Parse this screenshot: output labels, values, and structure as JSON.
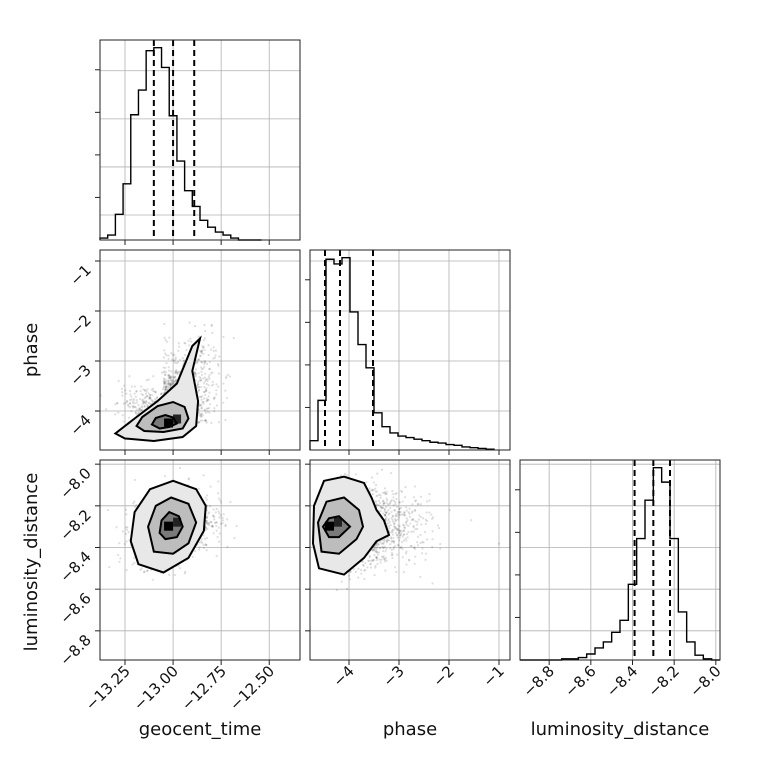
{
  "chart_data": {
    "type": "corner",
    "parameters": [
      {
        "name": "geocent_time",
        "label": "geocent_time",
        "range": [
          -13.38,
          -12.34
        ],
        "ticks": [
          -13.25,
          -13.0,
          -12.75,
          -12.5
        ],
        "tick_labels": [
          "−13.25",
          "−13.00",
          "−12.75",
          "−12.50"
        ],
        "quantiles": [
          -13.1,
          -13.0,
          -12.89
        ]
      },
      {
        "name": "phase",
        "label": "phase",
        "range": [
          -4.78,
          -0.78
        ],
        "ticks": [
          -4,
          -3,
          -2,
          -1
        ],
        "tick_labels": [
          "−4",
          "−3",
          "−2",
          "−1"
        ],
        "quantiles": [
          -4.48,
          -4.18,
          -3.52
        ]
      },
      {
        "name": "luminosity_distance",
        "label": "luminosity_distance",
        "range": [
          -8.94,
          -7.98
        ],
        "ticks": [
          -8.8,
          -8.6,
          -8.4,
          -8.2,
          -8.0
        ],
        "tick_labels": [
          "−8.8",
          "−8.6",
          "−8.4",
          "−8.2",
          "−8.0"
        ],
        "quantiles": [
          -8.39,
          -8.3,
          -8.22
        ]
      }
    ],
    "histograms": [
      {
        "parameter": "geocent_time",
        "edges": [
          -13.38,
          -13.34,
          -13.3,
          -13.26,
          -13.22,
          -13.18,
          -13.14,
          -13.1,
          -13.06,
          -13.02,
          -12.98,
          -12.94,
          -12.9,
          -12.86,
          -12.82,
          -12.78,
          -12.74,
          -12.7,
          -12.66,
          -12.62,
          -12.58,
          -12.54
        ],
        "counts": [
          0.2,
          0.5,
          2.6,
          5.7,
          12.7,
          15.2,
          19.2,
          19.5,
          17.5,
          12.6,
          8.0,
          5.0,
          3.4,
          2.0,
          1.3,
          0.8,
          0.5,
          0.2,
          0,
          0,
          0
        ]
      },
      {
        "parameter": "phase",
        "edges": [
          -4.78,
          -4.62,
          -4.46,
          -4.3,
          -4.14,
          -3.98,
          -3.82,
          -3.66,
          -3.5,
          -3.34,
          -3.18,
          -3.02,
          -2.86,
          -2.7,
          -2.54,
          -2.38,
          -2.22,
          -2.06,
          -1.9,
          -1.74,
          -1.58,
          -1.42,
          -1.26,
          -1.1
        ],
        "counts": [
          0.6,
          3.2,
          12.3,
          12.0,
          12.4,
          8.9,
          6.8,
          5.3,
          2.4,
          1.5,
          1.1,
          0.9,
          0.8,
          0.7,
          0.6,
          0.5,
          0.45,
          0.35,
          0.3,
          0.2,
          0.15,
          0.1,
          0.05
        ]
      },
      {
        "parameter": "luminosity_distance",
        "edges": [
          -8.94,
          -8.9,
          -8.86,
          -8.82,
          -8.78,
          -8.74,
          -8.7,
          -8.66,
          -8.62,
          -8.58,
          -8.54,
          -8.5,
          -8.46,
          -8.42,
          -8.38,
          -8.34,
          -8.3,
          -8.26,
          -8.22,
          -8.18,
          -8.14,
          -8.1,
          -8.06,
          -8.02,
          -7.98
        ],
        "counts": [
          0,
          0,
          0,
          0,
          0,
          0.1,
          0.1,
          0.2,
          0.5,
          1.0,
          1.5,
          2.3,
          3.3,
          6.3,
          10.1,
          13.3,
          16.0,
          14.8,
          10.1,
          4.0,
          1.5,
          0.4,
          0.1,
          0
        ]
      }
    ],
    "pairs": [
      {
        "x": "geocent_time",
        "y": "phase",
        "center": [
          -13.0,
          -4.25
        ],
        "sigma": [
          0.1,
          0.45
        ],
        "correlation": 0.55,
        "contours": [
          [
            [
              -13.07,
              -4.35
            ],
            [
              -13.02,
              -4.32
            ],
            [
              -12.98,
              -4.25
            ],
            [
              -13.0,
              -4.13
            ],
            [
              -13.04,
              -4.08
            ],
            [
              -13.09,
              -4.14
            ],
            [
              -13.11,
              -4.27
            ]
          ],
          [
            [
              -13.15,
              -4.4
            ],
            [
              -13.05,
              -4.42
            ],
            [
              -12.95,
              -4.35
            ],
            [
              -12.92,
              -4.15
            ],
            [
              -12.94,
              -3.92
            ],
            [
              -13.0,
              -3.82
            ],
            [
              -13.08,
              -3.9
            ],
            [
              -13.16,
              -4.12
            ],
            [
              -13.19,
              -4.3
            ]
          ],
          [
            [
              -13.25,
              -4.55
            ],
            [
              -13.1,
              -4.6
            ],
            [
              -12.95,
              -4.52
            ],
            [
              -12.88,
              -4.3
            ],
            [
              -12.87,
              -3.8
            ],
            [
              -12.9,
              -3.2
            ],
            [
              -12.86,
              -2.55
            ],
            [
              -12.9,
              -2.7
            ],
            [
              -12.98,
              -3.45
            ],
            [
              -13.08,
              -3.8
            ],
            [
              -13.2,
              -4.15
            ],
            [
              -13.3,
              -4.45
            ]
          ]
        ]
      },
      {
        "x": "geocent_time",
        "y": "luminosity_distance",
        "center": [
          -13.0,
          -8.3
        ],
        "sigma": [
          0.1,
          0.08
        ],
        "correlation": 0.3,
        "contours": [
          [
            [
              -13.04,
              -8.36
            ],
            [
              -12.98,
              -8.35
            ],
            [
              -12.95,
              -8.3
            ],
            [
              -12.97,
              -8.25
            ],
            [
              -13.02,
              -8.23
            ],
            [
              -13.06,
              -8.27
            ],
            [
              -13.07,
              -8.33
            ]
          ],
          [
            [
              -13.1,
              -8.42
            ],
            [
              -13.0,
              -8.43
            ],
            [
              -12.92,
              -8.38
            ],
            [
              -12.88,
              -8.28
            ],
            [
              -12.92,
              -8.19
            ],
            [
              -13.01,
              -8.16
            ],
            [
              -13.09,
              -8.2
            ],
            [
              -13.13,
              -8.3
            ]
          ],
          [
            [
              -13.18,
              -8.48
            ],
            [
              -13.05,
              -8.52
            ],
            [
              -12.92,
              -8.45
            ],
            [
              -12.84,
              -8.32
            ],
            [
              -12.83,
              -8.2
            ],
            [
              -12.88,
              -8.12
            ],
            [
              -13.0,
              -8.08
            ],
            [
              -13.12,
              -8.12
            ],
            [
              -13.2,
              -8.23
            ],
            [
              -13.22,
              -8.37
            ]
          ]
        ]
      },
      {
        "x": "phase",
        "y": "luminosity_distance",
        "center": [
          -4.3,
          -8.3
        ],
        "sigma": [
          0.55,
          0.09
        ],
        "correlation": 0.0,
        "contours": [
          [
            [
              -4.4,
              -8.35
            ],
            [
              -4.2,
              -8.35
            ],
            [
              -3.98,
              -8.3
            ],
            [
              -4.2,
              -8.25
            ],
            [
              -4.4,
              -8.26
            ],
            [
              -4.52,
              -8.3
            ]
          ],
          [
            [
              -4.55,
              -8.42
            ],
            [
              -4.2,
              -8.43
            ],
            [
              -3.85,
              -8.36
            ],
            [
              -3.72,
              -8.3
            ],
            [
              -3.8,
              -8.22
            ],
            [
              -4.1,
              -8.16
            ],
            [
              -4.45,
              -8.18
            ],
            [
              -4.62,
              -8.28
            ]
          ],
          [
            [
              -4.6,
              -8.5
            ],
            [
              -4.1,
              -8.53
            ],
            [
              -3.7,
              -8.45
            ],
            [
              -3.45,
              -8.37
            ],
            [
              -3.2,
              -8.34
            ],
            [
              -3.3,
              -8.27
            ],
            [
              -3.45,
              -8.22
            ],
            [
              -3.55,
              -8.16
            ],
            [
              -3.7,
              -8.09
            ],
            [
              -4.1,
              -8.06
            ],
            [
              -4.5,
              -8.08
            ],
            [
              -4.7,
              -8.2
            ],
            [
              -4.72,
              -8.38
            ]
          ]
        ]
      }
    ],
    "grid": true
  }
}
